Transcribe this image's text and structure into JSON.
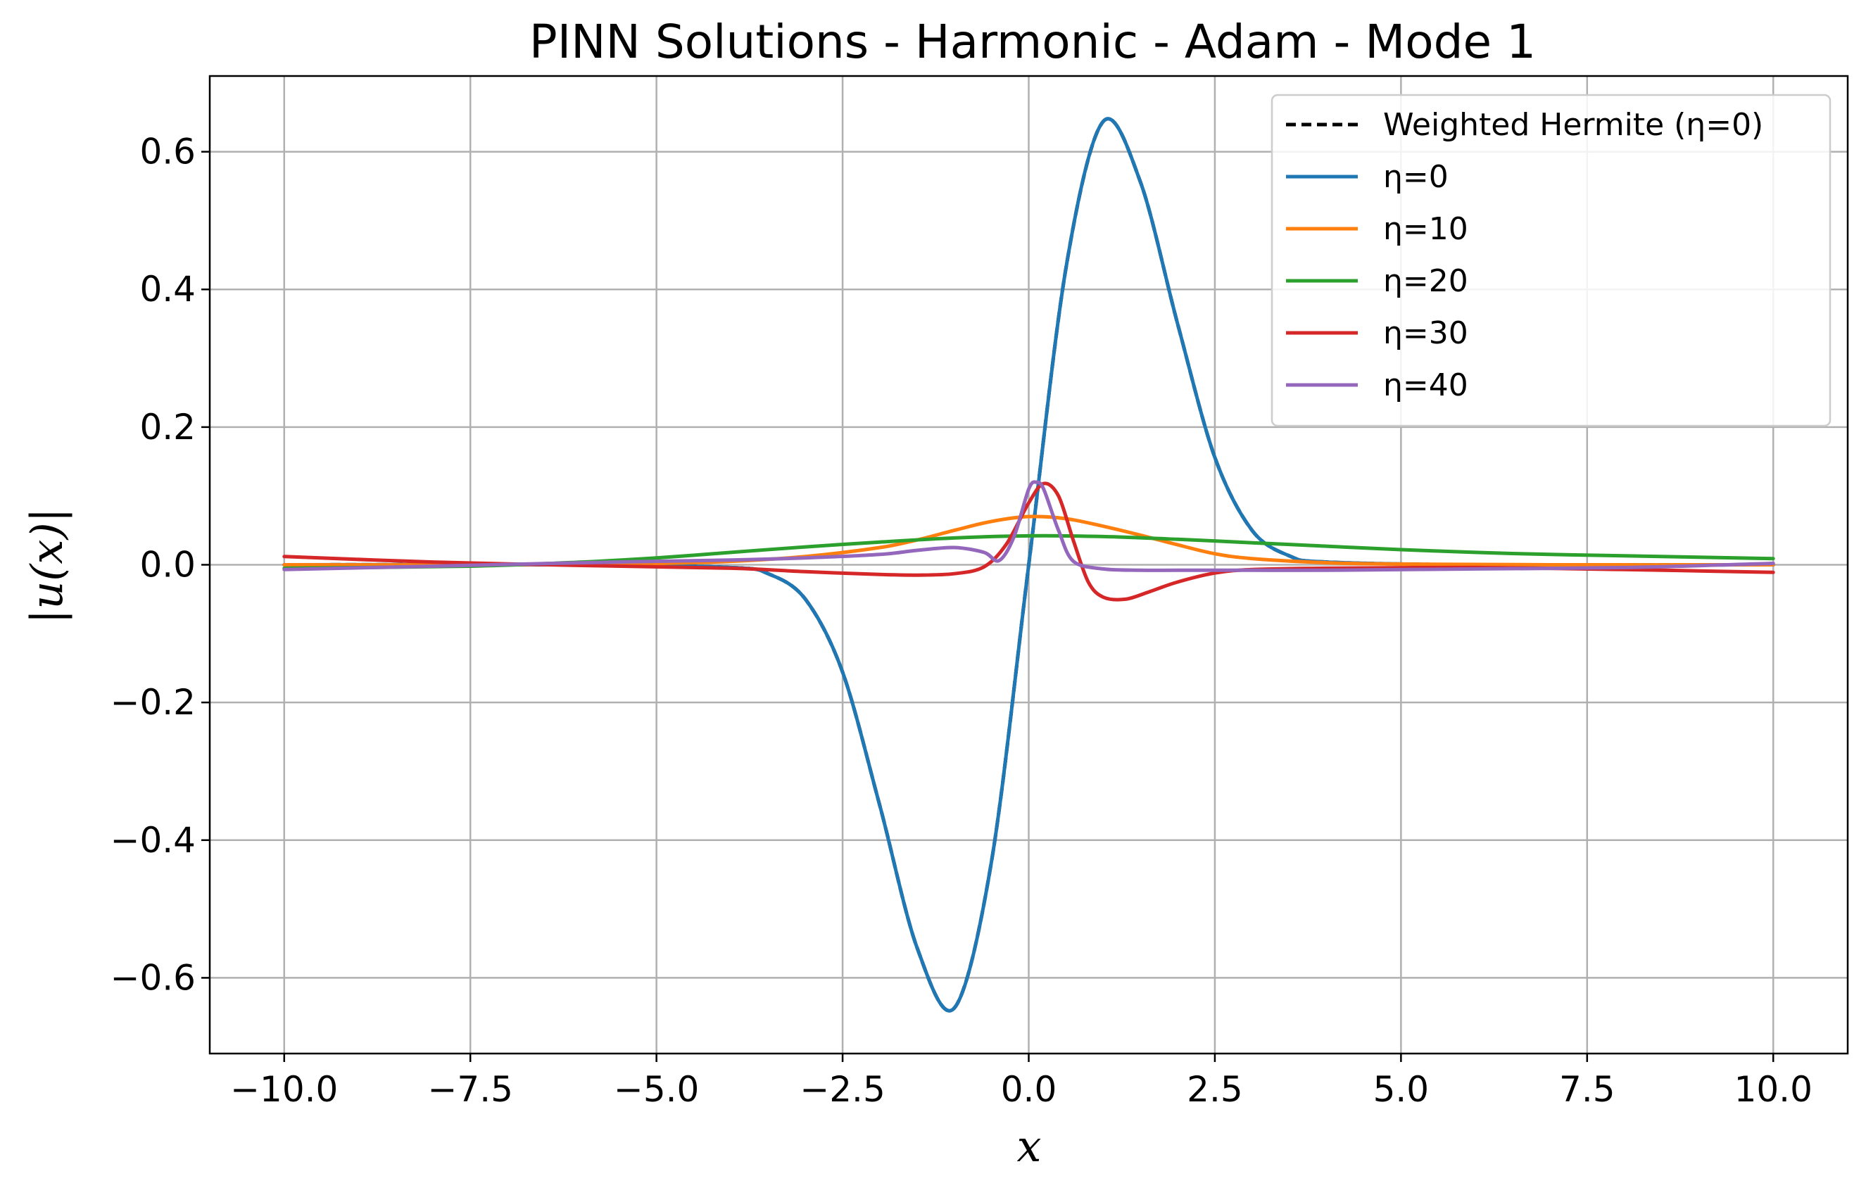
{
  "chart_data": {
    "type": "line",
    "title": "PINN Solutions - Harmonic - Adam - Mode 1",
    "xlabel": "x",
    "ylabel": "|u(x)|",
    "xlim": [
      -11.0,
      11.0
    ],
    "ylim": [
      -0.71,
      0.71
    ],
    "xticks": [
      -10.0,
      -7.5,
      -5.0,
      -2.5,
      0.0,
      2.5,
      5.0,
      7.5,
      10.0
    ],
    "xtick_labels": [
      "−10.0",
      "−7.5",
      "−5.0",
      "−2.5",
      "0.0",
      "2.5",
      "5.0",
      "7.5",
      "10.0"
    ],
    "yticks": [
      -0.6,
      -0.4,
      -0.2,
      0.0,
      0.2,
      0.4,
      0.6
    ],
    "ytick_labels": [
      "−0.6",
      "−0.4",
      "−0.2",
      "0.0",
      "0.2",
      "0.4",
      "0.6"
    ],
    "grid": true,
    "legend_position": "top-right",
    "series": [
      {
        "name": "Weighted Hermite (η=0)",
        "color": "#000000",
        "dash": "dashed",
        "x": [
          -10,
          -6,
          -4,
          -3.5,
          -3,
          -2.5,
          -2,
          -1.5,
          -1,
          -0.5,
          0,
          0.5,
          1,
          1.5,
          2,
          2.5,
          3,
          3.5,
          4,
          6,
          10
        ],
        "y": [
          0,
          0,
          -0.004,
          -0.013,
          -0.05,
          -0.156,
          -0.35,
          -0.556,
          -0.644,
          -0.431,
          0,
          0.431,
          0.644,
          0.556,
          0.35,
          0.156,
          0.05,
          0.013,
          0.004,
          0,
          0
        ]
      },
      {
        "name": "η=0",
        "color": "#1f77b4",
        "x": [
          -10,
          -6,
          -4,
          -3.5,
          -3,
          -2.5,
          -2,
          -1.5,
          -1,
          -0.5,
          0,
          0.5,
          1,
          1.5,
          2,
          2.5,
          3,
          3.5,
          4,
          6,
          10
        ],
        "y": [
          0,
          0,
          -0.004,
          -0.013,
          -0.05,
          -0.156,
          -0.35,
          -0.556,
          -0.644,
          -0.431,
          0,
          0.431,
          0.644,
          0.556,
          0.35,
          0.156,
          0.05,
          0.013,
          0.004,
          0,
          0
        ]
      },
      {
        "name": "η=10",
        "color": "#ff7f0e",
        "x": [
          -10,
          -7,
          -5,
          -4,
          -3,
          -2,
          -1.5,
          -1,
          -0.5,
          0,
          0.5,
          1,
          1.5,
          2,
          2.5,
          3,
          4,
          5,
          7,
          10
        ],
        "y": [
          0,
          0,
          0.002,
          0.005,
          0.012,
          0.025,
          0.036,
          0.05,
          0.063,
          0.07,
          0.067,
          0.056,
          0.043,
          0.029,
          0.016,
          0.009,
          0.003,
          0.001,
          0,
          0
        ]
      },
      {
        "name": "η=20",
        "color": "#2ca02c",
        "x": [
          -10,
          -7.5,
          -6,
          -5,
          -4,
          -3,
          -2,
          -1,
          0,
          1,
          2,
          3,
          4,
          5,
          6,
          7,
          8,
          10
        ],
        "y": [
          -0.005,
          -0.002,
          0.004,
          0.01,
          0.018,
          0.026,
          0.033,
          0.039,
          0.042,
          0.041,
          0.037,
          0.032,
          0.027,
          0.022,
          0.018,
          0.015,
          0.013,
          0.009
        ]
      },
      {
        "name": "η=30",
        "color": "#d62728",
        "x": [
          -10,
          -8,
          -6,
          -4,
          -3,
          -2,
          -1.5,
          -1,
          -0.6,
          -0.3,
          0,
          0.2,
          0.4,
          0.6,
          0.8,
          1,
          1.3,
          1.6,
          2,
          2.5,
          3,
          4,
          6,
          8,
          10
        ],
        "y": [
          0.012,
          0.004,
          -0.001,
          -0.005,
          -0.01,
          -0.014,
          -0.015,
          -0.013,
          -0.003,
          0.03,
          0.09,
          0.118,
          0.1,
          0.035,
          -0.025,
          -0.047,
          -0.05,
          -0.04,
          -0.025,
          -0.012,
          -0.007,
          -0.005,
          -0.004,
          -0.007,
          -0.011
        ]
      },
      {
        "name": "η=40",
        "color": "#9467bd",
        "x": [
          -10,
          -8,
          -6,
          -4,
          -3,
          -2,
          -1.5,
          -1,
          -0.6,
          -0.4,
          -0.2,
          0,
          0.1,
          0.2,
          0.4,
          0.6,
          1,
          1.5,
          2,
          3,
          4,
          6,
          8,
          10
        ],
        "y": [
          -0.007,
          -0.002,
          0.003,
          0.007,
          0.01,
          0.015,
          0.021,
          0.025,
          0.018,
          0.006,
          0.04,
          0.11,
          0.12,
          0.11,
          0.05,
          0.005,
          -0.006,
          -0.008,
          -0.008,
          -0.008,
          -0.008,
          -0.006,
          -0.004,
          0.002
        ]
      }
    ]
  }
}
